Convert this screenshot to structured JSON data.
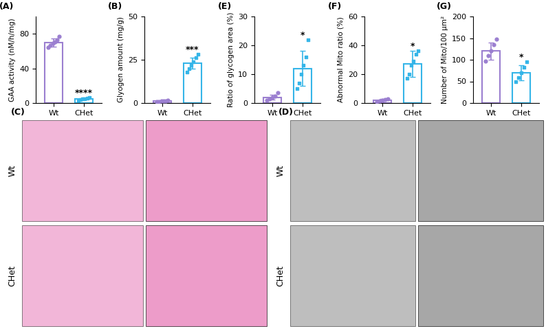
{
  "chart_data": [
    {
      "type": "bar",
      "title": "(A)",
      "y_label": "GAA activity (nM/h/mg)",
      "categories": [
        "Wt",
        "CHet"
      ],
      "values": [
        70,
        5
      ],
      "errors": [
        5,
        1
      ],
      "points": [
        [
          64,
          67,
          69,
          71,
          73,
          77
        ],
        [
          3.5,
          4,
          4.5,
          5,
          5.5,
          6
        ]
      ],
      "colors": [
        "#9b7fd0",
        "#35b5e8"
      ],
      "ylim": [
        0,
        100
      ],
      "yticks": [
        0,
        40,
        80
      ],
      "annotations": [
        {
          "category": "CHet",
          "text": "****"
        }
      ]
    },
    {
      "type": "bar",
      "title": "(B)",
      "y_label": "Glyogen amount (mg/g)",
      "categories": [
        "Wt",
        "CHet"
      ],
      "values": [
        1,
        23
      ],
      "errors": [
        0.3,
        3
      ],
      "points": [
        [
          0.6,
          0.8,
          1,
          1.1,
          1.2,
          1.4
        ],
        [
          18,
          20,
          22,
          24,
          26,
          28
        ]
      ],
      "colors": [
        "#9b7fd0",
        "#35b5e8"
      ],
      "ylim": [
        0,
        50
      ],
      "yticks": [
        0,
        25,
        50
      ],
      "annotations": [
        {
          "category": "CHet",
          "text": "***"
        }
      ]
    },
    {
      "type": "bar",
      "title": "(E)",
      "y_label": "Ratio of glycogen area (%)",
      "categories": [
        "Wt",
        "CHet"
      ],
      "values": [
        2,
        12
      ],
      "errors": [
        0.8,
        6
      ],
      "points": [
        [
          1,
          1.5,
          2,
          2.5,
          3.5
        ],
        [
          5,
          7,
          10,
          13,
          16,
          22
        ]
      ],
      "colors": [
        "#9b7fd0",
        "#35b5e8"
      ],
      "ylim": [
        0,
        30
      ],
      "yticks": [
        0,
        10,
        20,
        30
      ],
      "annotations": [
        {
          "category": "CHet",
          "text": "*"
        }
      ]
    },
    {
      "type": "bar",
      "title": "(F)",
      "y_label": "Abnormal Mito ratio (%)",
      "categories": [
        "Wt",
        "CHet"
      ],
      "values": [
        2,
        27
      ],
      "errors": [
        0.8,
        9
      ],
      "points": [
        [
          1,
          1.5,
          2,
          2.5,
          3
        ],
        [
          17,
          20,
          26,
          29,
          34,
          36
        ]
      ],
      "colors": [
        "#9b7fd0",
        "#35b5e8"
      ],
      "ylim": [
        0,
        60
      ],
      "yticks": [
        0,
        20,
        40,
        60
      ],
      "annotations": [
        {
          "category": "CHet",
          "text": "*"
        }
      ]
    },
    {
      "type": "bar",
      "title": "(G)",
      "y_label": "Number of Mito/100 μm²",
      "categories": [
        "Wt",
        "CHet"
      ],
      "values": [
        120,
        70
      ],
      "errors": [
        20,
        18
      ],
      "points": [
        [
          97,
          110,
          120,
          135,
          147
        ],
        [
          50,
          58,
          70,
          82,
          95
        ]
      ],
      "colors": [
        "#9b7fd0",
        "#35b5e8"
      ],
      "ylim": [
        0,
        200
      ],
      "yticks": [
        0,
        50,
        100,
        150,
        200
      ],
      "annotations": [
        {
          "category": "CHet",
          "text": "*"
        }
      ]
    }
  ],
  "images": [
    {
      "label": "(C)",
      "rows": [
        "Wt",
        "CHet"
      ],
      "color": "#e87bb8"
    },
    {
      "label": "(D)",
      "rows": [
        "Wt",
        "CHet"
      ],
      "color": "#8a8a8a"
    }
  ]
}
